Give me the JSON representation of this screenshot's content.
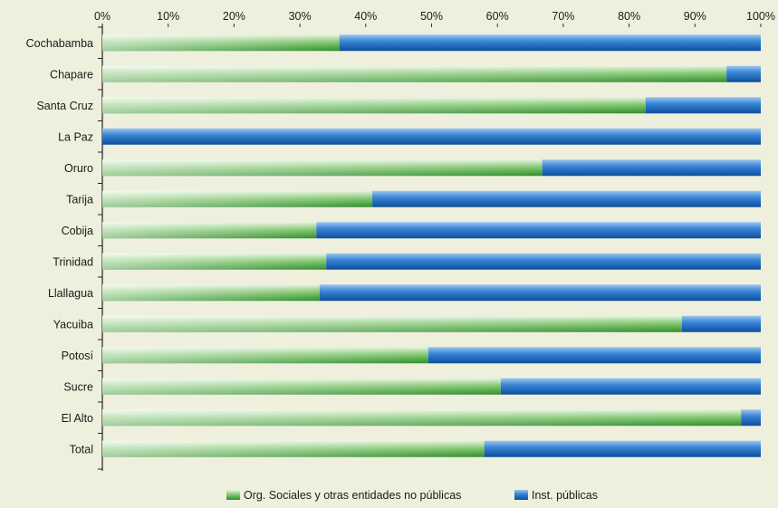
{
  "chart_data": {
    "type": "bar",
    "orientation": "horizontal",
    "stacked": true,
    "percent": true,
    "categories": [
      "Cochabamba",
      "Chapare",
      "Santa Cruz",
      "La Paz",
      "Oruro",
      "Tarija",
      "Cobija",
      "Trinidad",
      "Llallagua",
      "Yacuiba",
      "Potosí",
      "Sucre",
      "El Alto",
      "Total"
    ],
    "series": [
      {
        "name": "Org. Sociales y otras entidades no públicas",
        "color": "#4caa3c",
        "values": [
          36,
          94.8,
          82.5,
          0,
          66.8,
          41,
          32.5,
          34,
          33,
          88,
          49.5,
          60.5,
          97,
          58
        ]
      },
      {
        "name": "Inst. públicas",
        "color": "#1f6fbe",
        "values": [
          64,
          5.2,
          17.5,
          100,
          33.2,
          59,
          67.5,
          66,
          67,
          12,
          50.5,
          39.5,
          3,
          42
        ]
      }
    ],
    "xlim": [
      0,
      100
    ],
    "x_ticks": [
      "0%",
      "10%",
      "20%",
      "30%",
      "40%",
      "50%",
      "60%",
      "70%",
      "80%",
      "90%",
      "100%"
    ],
    "grid": false,
    "legend_position": "bottom"
  }
}
